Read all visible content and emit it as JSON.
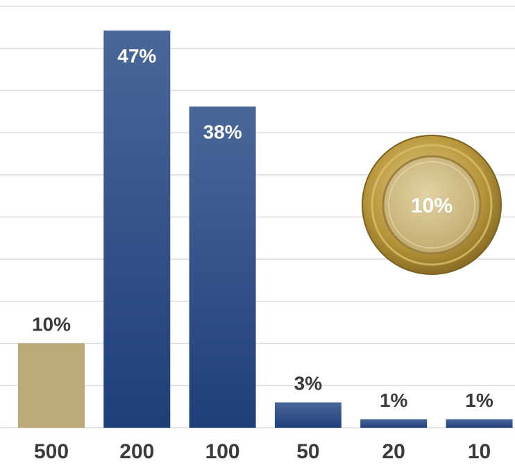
{
  "chart_data": {
    "type": "bar",
    "title": "",
    "xlabel": "",
    "ylabel": "",
    "categories": [
      "500",
      "200",
      "100",
      "50",
      "20",
      "10"
    ],
    "values": [
      10,
      47,
      38,
      3,
      1,
      1
    ],
    "value_labels": [
      "10%",
      "47%",
      "38%",
      "3%",
      "1%",
      "1%"
    ],
    "ylim": [
      0,
      50
    ],
    "grid": true,
    "bar_colors": [
      "#bba97a",
      "#2e4e86",
      "#2e4e86",
      "#2e4e86",
      "#2e4e86",
      "#2e4e86"
    ],
    "value_label_inside": [
      false,
      true,
      true,
      false,
      false,
      false
    ],
    "annotation": {
      "label": "10%",
      "icon": "gold-coin-icon"
    }
  },
  "colors": {
    "grid": "#dcdcdc",
    "blue_top": "#4a6799",
    "blue_bottom": "#1f3f7a",
    "gold": "#bba97a",
    "label_dark": "#3a3a3a",
    "label_light": "#ffffff",
    "coin_outer": "#b8953a",
    "coin_inner": "#cdb980"
  }
}
